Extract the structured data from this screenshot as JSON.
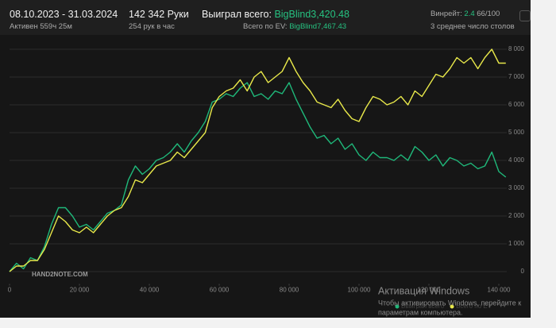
{
  "header": {
    "period": "08.10.2023 - 31.03.2024",
    "active": "Активен 559ч 25м",
    "hands": "142 342 Руки",
    "hands_per_hour": "254 рук в час",
    "won_label": "Выиграл всего:",
    "won_value": "BigBlind3,420.48",
    "ev_label": "Всего по EV:",
    "ev_value": "BigBlind7,467.43",
    "winrate_label": "Винрейт:",
    "winrate_value": "2.4",
    "winrate_unit": "66/100",
    "tables": "3 среднее число столов"
  },
  "watermark": {
    "logo": "HAND2NOTE.COM",
    "activation_title": "Активация Windows",
    "activation_lines": [
      "Чтобы активировать Windows, перейдите к",
      "параметрам компьютера."
    ]
  },
  "chart_data": {
    "type": "line",
    "x": [
      0,
      2000,
      4000,
      6000,
      8000,
      10000,
      12000,
      14000,
      16000,
      18000,
      20000,
      22000,
      24000,
      26000,
      28000,
      30000,
      32000,
      34000,
      36000,
      38000,
      40000,
      42000,
      44000,
      46000,
      48000,
      50000,
      52000,
      54000,
      56000,
      58000,
      60000,
      62000,
      64000,
      66000,
      68000,
      70000,
      72000,
      74000,
      76000,
      78000,
      80000,
      82000,
      84000,
      86000,
      88000,
      90000,
      92000,
      94000,
      96000,
      98000,
      100000,
      102000,
      104000,
      106000,
      108000,
      110000,
      112000,
      114000,
      116000,
      118000,
      120000,
      122000,
      124000,
      126000,
      128000,
      130000,
      132000,
      134000,
      136000,
      138000,
      140000,
      142000
    ],
    "series": [
      {
        "name": "Выиграл всего",
        "color": "#1fb87a",
        "values": [
          0,
          300,
          100,
          500,
          400,
          900,
          1700,
          2300,
          2300,
          2000,
          1600,
          1700,
          1500,
          1800,
          2100,
          2200,
          2400,
          3300,
          3800,
          3500,
          3700,
          4000,
          4100,
          4300,
          4600,
          4300,
          4700,
          5000,
          5400,
          6100,
          6200,
          6400,
          6300,
          6600,
          6800,
          6300,
          6400,
          6200,
          6500,
          6400,
          6800,
          6200,
          5700,
          5200,
          4800,
          4900,
          4600,
          4800,
          4400,
          4600,
          4200,
          4000,
          4300,
          4100,
          4100,
          4000,
          4200,
          4000,
          4500,
          4300,
          4000,
          4200,
          3800,
          4100,
          4000,
          3800,
          3900,
          3700,
          3800,
          4300,
          3600,
          3400
        ]
      },
      {
        "name": "Всего по EV",
        "color": "#e8e84a",
        "values": [
          0,
          200,
          200,
          400,
          400,
          800,
          1400,
          2000,
          1800,
          1500,
          1400,
          1600,
          1400,
          1700,
          2000,
          2200,
          2300,
          2700,
          3300,
          3200,
          3500,
          3800,
          3900,
          4000,
          4300,
          4100,
          4400,
          4700,
          5000,
          5900,
          6300,
          6500,
          6600,
          6900,
          6500,
          7000,
          7200,
          6800,
          7000,
          7200,
          7700,
          7200,
          6800,
          6500,
          6100,
          6000,
          5900,
          6200,
          5800,
          5500,
          5400,
          5900,
          6300,
          6200,
          6000,
          6100,
          6300,
          6000,
          6500,
          6300,
          6700,
          7100,
          7000,
          7300,
          7700,
          7500,
          7700,
          7300,
          7700,
          8000,
          7500,
          7500
        ]
      }
    ],
    "xlim": [
      0,
      145000
    ],
    "xticks": [
      0,
      {
        "value": 20000,
        "label": "20 000"
      },
      {
        "value": 40000,
        "label": "40 000"
      },
      {
        "value": 60000,
        "label": "60 000"
      },
      {
        "value": 80000,
        "label": "80 000"
      },
      {
        "value": 100000,
        "label": "100 000"
      },
      {
        "value": 120000,
        "label": "120 000"
      },
      {
        "value": 140000,
        "label": "140 000"
      }
    ],
    "ylim": [
      -500,
      8500
    ],
    "yticks": [
      0,
      {
        "value": 1000,
        "label": "1 000"
      },
      {
        "value": 2000,
        "label": "2 000"
      },
      {
        "value": 3000,
        "label": "3 000"
      },
      {
        "value": 4000,
        "label": "4 000"
      },
      {
        "value": 5000,
        "label": "5 000"
      },
      {
        "value": 6000,
        "label": "6 000"
      },
      {
        "value": 7000,
        "label": "7 000"
      },
      {
        "value": 8000,
        "label": "8 000"
      }
    ],
    "grid": true
  }
}
